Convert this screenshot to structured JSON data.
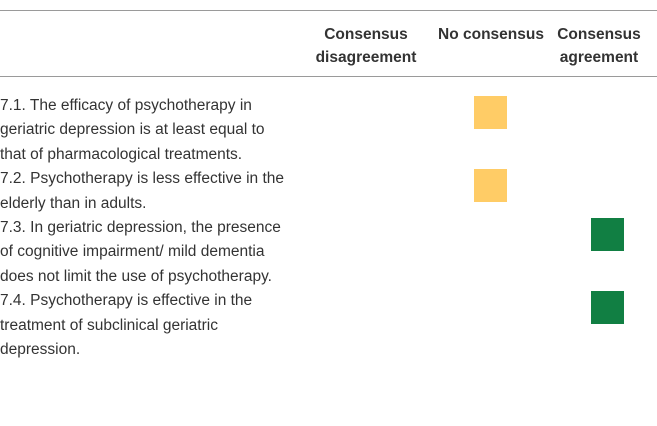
{
  "table": {
    "columns": [
      {
        "label": "Consensus disagreement",
        "color": "#c0392b"
      },
      {
        "label": "No consensus",
        "color": "#ffcc66"
      },
      {
        "label": "Consensus agreement",
        "color": "#117f43"
      }
    ],
    "rows": [
      {
        "statement": "7.1. The efficacy of psychotherapy in geriatric depression is at least equal to that of pharmacological treatments.",
        "column": 1
      },
      {
        "statement": "7.2. Psychotherapy is less effective in the elderly than in adults.",
        "column": 1
      },
      {
        "statement": "7.3. In geriatric depression, the presence of cognitive impairment/ mild dementia does not limit the use of psychotherapy.",
        "column": 2
      },
      {
        "statement": "7.4. Psychotherapy is effective in the treatment of subclinical geriatric depression.",
        "column": 2
      }
    ]
  }
}
